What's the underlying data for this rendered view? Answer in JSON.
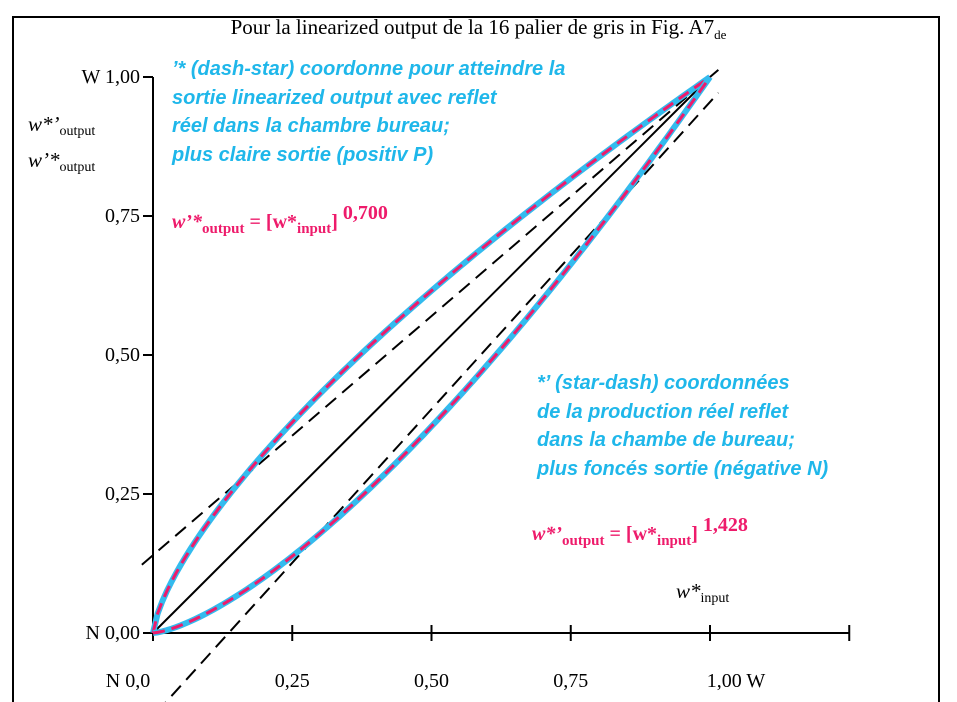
{
  "title": {
    "text": "Pour la linearized output de la 16 palier de gris in Fig. A7",
    "sub": "de"
  },
  "chart_data": {
    "type": "line",
    "xlim": [
      0,
      1.25
    ],
    "ylim": [
      0,
      1.0
    ],
    "x_ticks": [
      0,
      0.25,
      0.5,
      0.75,
      1.0
    ],
    "x_tick_labels": [
      "N 0,0",
      "0,25",
      "0,50",
      "0,75",
      "1,00  W"
    ],
    "y_ticks": [
      0,
      0.25,
      0.5,
      0.75,
      1.0
    ],
    "y_tick_labels": [
      "N 0,00",
      "0,25",
      "0,50",
      "0,75",
      "W 1,00"
    ],
    "x_axis_label": {
      "main": "w*",
      "sub": "input"
    },
    "y_axis_labels": [
      {
        "main": "w*’",
        "sub": "output"
      },
      {
        "main": "w’*",
        "sub": "output"
      }
    ],
    "series": [
      {
        "exponent": 0.7,
        "style": "dashed pink over light-blue"
      },
      {
        "exponent": 1.428,
        "style": "dashed pink over light-blue"
      },
      {
        "style": "solid black diagonal",
        "x": [
          0,
          1
        ],
        "y": [
          0,
          1
        ]
      }
    ],
    "tangents": [
      {
        "style": "dashed black",
        "x": [
          0,
          1.0
        ],
        "y": [
          0.14,
          1.0
        ]
      },
      {
        "style": "dashed black",
        "x": [
          0.0,
          1.0
        ],
        "y": [
          -0.15,
          0.955
        ]
      }
    ],
    "annotations": {
      "upper": {
        "lines": [
          "’* (dash-star) coordonne pour atteindre la",
          "sortie linearized output avec reflet",
          "réel dans la chambre bureau;",
          "plus claire sortie (positiv P)"
        ],
        "formula": {
          "lhs": "w’*",
          "lhs_sub": "output",
          "mid": " = [w*",
          "mid_sub": "input",
          "close": "]",
          "exponent": "0,700"
        }
      },
      "lower": {
        "lines": [
          "*’ (star-dash) coordonnées",
          "de la production réel reflet",
          "dans la chambe de bureau;",
          "plus foncés sortie (négative N)"
        ],
        "formula": {
          "lhs": "w*’",
          "lhs_sub": "output",
          "mid": " = [w*",
          "mid_sub": "input",
          "close": "]",
          "exponent": "1,428"
        }
      }
    },
    "colors": {
      "curve_base": "#33bbee",
      "curve_dash": "#ee1b6b",
      "annotation_text": "#1fb7ea",
      "formula_text": "#ee1b6b"
    }
  }
}
